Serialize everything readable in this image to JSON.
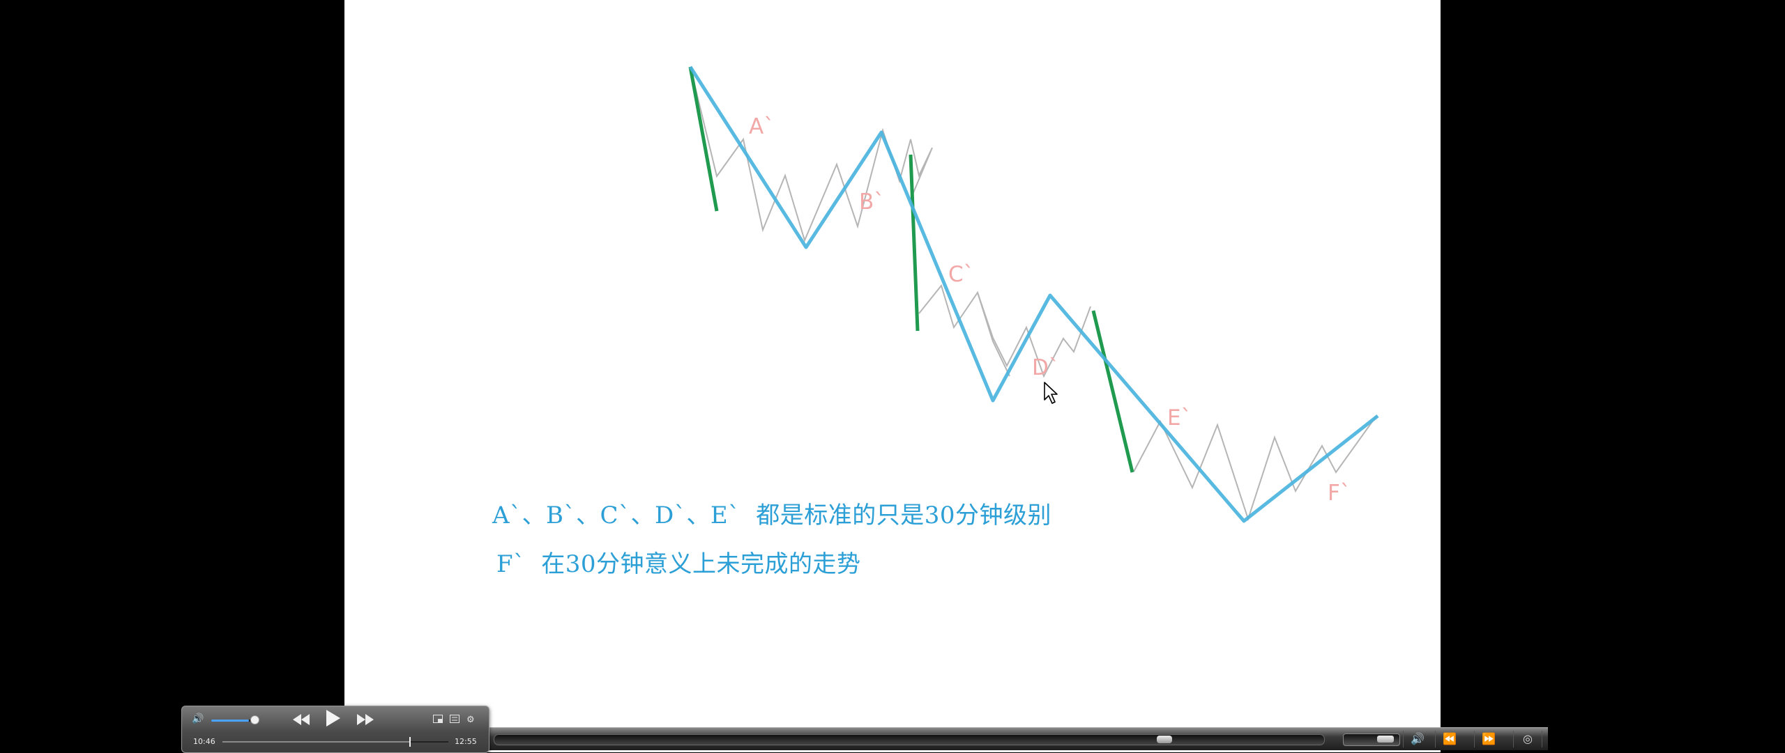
{
  "slide": {
    "wave_labels": {
      "a": "A`",
      "b": "B`",
      "c": "C`",
      "d": "D`",
      "e": "E`",
      "f": "F`"
    },
    "caption_1": "A`、B`、C`、D`、E`  都是标准的只是30分钟级别",
    "caption_2": "F`  在30分钟意义上未完成的走势",
    "colors": {
      "trend_line": "#4ab3de",
      "segment_line": "#1f9a4e",
      "sub_wave": "#b5b5b5",
      "wave_label": "#f3a8a8",
      "caption": "#2b9fd6"
    }
  },
  "player": {
    "time_current": "10:46",
    "time_total": "12:55",
    "playback_progress": 0.833,
    "volume_level": 0.85,
    "icons": {
      "volume": "speaker-icon",
      "rewind": "rewind-icon",
      "play": "play-icon",
      "forward": "fast-forward-icon",
      "pip": "picture-in-picture-icon",
      "chapters": "chapters-icon",
      "settings": "gear-icon"
    }
  },
  "bottom_bar": {
    "volume_level": 0.6,
    "icons": {
      "speaker": "speaker-icon",
      "rewind": "rewind-icon",
      "forward": "fast-forward-icon",
      "settings": "settings-icon"
    }
  }
}
